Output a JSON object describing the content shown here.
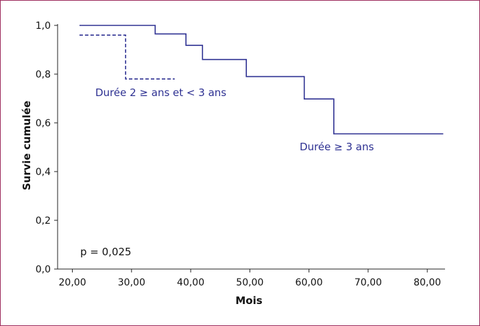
{
  "chart_data": {
    "type": "line",
    "xlabel": "Mois",
    "ylabel": "Survie cumulée",
    "xlim": [
      17.5,
      83
    ],
    "ylim": [
      0,
      1.0
    ],
    "x_ticks": [
      "20,00",
      "30,00",
      "40,00",
      "50,00",
      "60,00",
      "70,00",
      "80,00"
    ],
    "x_tick_values": [
      20,
      30,
      40,
      50,
      60,
      70,
      80
    ],
    "y_ticks": [
      "0,0",
      "0,2",
      "0,4",
      "0,6",
      "0,8",
      "1,0"
    ],
    "y_tick_values": [
      0,
      0.2,
      0.4,
      0.6,
      0.8,
      1.0
    ],
    "series": [
      {
        "name": "Durée ≥ 3 ans",
        "style": "solid",
        "color": "#2e3192",
        "x": [
          21.2,
          34.0,
          39.2,
          42.0,
          49.4,
          59.2,
          64.2,
          82.7
        ],
        "y": [
          1.0,
          0.965,
          0.918,
          0.86,
          0.79,
          0.698,
          0.555,
          0.555
        ]
      },
      {
        "name": "Durée 2 ≥ ans et < 3 ans",
        "style": "dashed",
        "color": "#2e3192",
        "x": [
          21.2,
          29.0,
          37.3
        ],
        "y": [
          0.96,
          0.78,
          0.78
        ]
      }
    ],
    "annotation": "p = 0,025"
  }
}
